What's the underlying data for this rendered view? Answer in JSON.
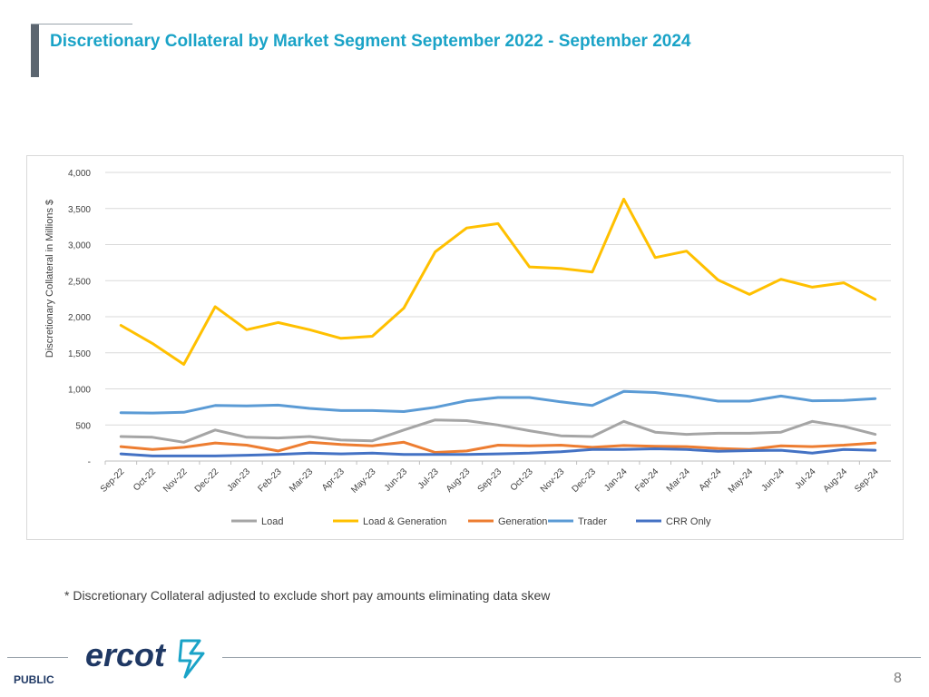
{
  "slide": {
    "title": "Discretionary Collateral by Market Segment September 2022 - September 2024",
    "footnote": "* Discretionary Collateral adjusted to exclude short pay amounts eliminating data skew",
    "classification": "PUBLIC",
    "page_number": "8",
    "logo_text": "ercot"
  },
  "colors": {
    "title": "#1aa3c7",
    "accent_bar": "#5c6670",
    "logo": "#1f3864",
    "logo_mark": "#1aa3c7"
  },
  "chart_data": {
    "type": "line",
    "title": "",
    "xlabel": "",
    "ylabel": "Discretionary Collateral in Millions $",
    "ylim": [
      0,
      4000
    ],
    "yticks": [
      0,
      500,
      1000,
      1500,
      2000,
      2500,
      3000,
      3500,
      4000
    ],
    "ytick_labels": [
      "-",
      "500",
      "1,000",
      "1,500",
      "2,000",
      "2,500",
      "3,000",
      "3,500",
      "4,000"
    ],
    "grid": true,
    "legend_position": "bottom",
    "categories": [
      "Sep-22",
      "Oct-22",
      "Nov-22",
      "Dec-22",
      "Jan-23",
      "Feb-23",
      "Mar-23",
      "Apr-23",
      "May-23",
      "Jun-23",
      "Jul-23",
      "Aug-23",
      "Sep-23",
      "Oct-23",
      "Nov-23",
      "Dec-23",
      "Jan-24",
      "Feb-24",
      "Mar-24",
      "Apr-24",
      "May-24",
      "Jun-24",
      "Jul-24",
      "Aug-24",
      "Sep-24"
    ],
    "series": [
      {
        "name": "Load",
        "color": "#a5a5a5",
        "values": [
          340,
          330,
          260,
          430,
          330,
          320,
          340,
          290,
          280,
          430,
          570,
          560,
          500,
          420,
          350,
          340,
          550,
          400,
          370,
          385,
          385,
          400,
          550,
          480,
          370
        ]
      },
      {
        "name": "Load & Generation",
        "color": "#ffc000",
        "values": [
          1880,
          1630,
          1340,
          2140,
          1820,
          1920,
          1820,
          1700,
          1730,
          2120,
          2900,
          3230,
          3290,
          2690,
          2670,
          2620,
          3630,
          2820,
          2910,
          2510,
          2310,
          2520,
          2410,
          2470,
          2240
        ]
      },
      {
        "name": "Generation",
        "color": "#ed7d31",
        "values": [
          200,
          160,
          190,
          250,
          220,
          140,
          260,
          230,
          210,
          260,
          120,
          140,
          220,
          210,
          220,
          190,
          215,
          205,
          200,
          175,
          160,
          210,
          200,
          220,
          250
        ]
      },
      {
        "name": "Trader",
        "color": "#5b9bd5",
        "values": [
          670,
          665,
          675,
          770,
          765,
          775,
          730,
          700,
          700,
          685,
          745,
          835,
          880,
          880,
          820,
          770,
          965,
          950,
          900,
          830,
          830,
          900,
          835,
          840,
          865
        ]
      },
      {
        "name": "CRR Only",
        "color": "#4472c4",
        "values": [
          100,
          70,
          70,
          70,
          80,
          90,
          110,
          100,
          110,
          90,
          90,
          90,
          100,
          110,
          130,
          160,
          160,
          170,
          160,
          135,
          145,
          150,
          110,
          160,
          150
        ]
      }
    ]
  }
}
